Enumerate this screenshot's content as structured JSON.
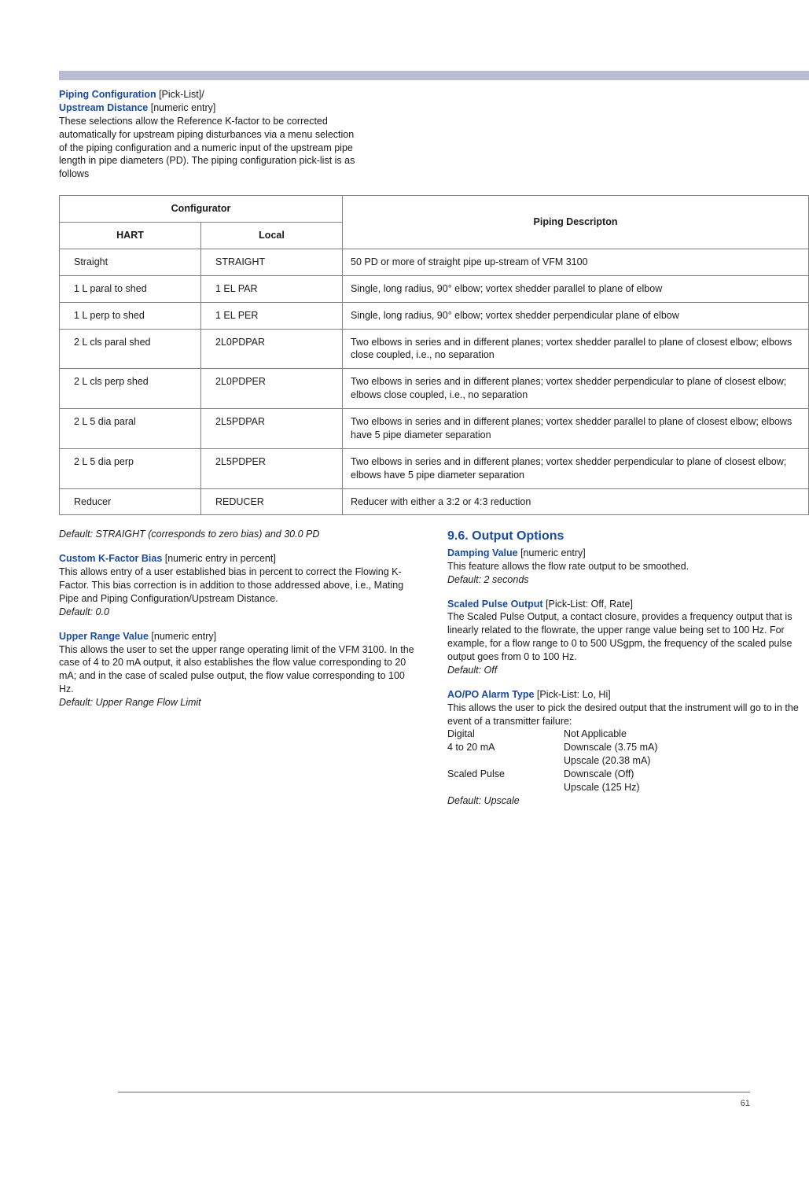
{
  "intro": {
    "heading1": "Piping Configuration",
    "heading1_suffix": " [Pick-List]/",
    "heading2": "Upstream Distance",
    "heading2_suffix": " [numeric entry]",
    "body": "These selections allow the Reference K-factor to be corrected automatically for upstream piping disturbances via a menu selection of the piping configuration and a numeric input of the upstream pipe length in pipe diameters (PD). The piping configuration pick-list is as follows"
  },
  "table": {
    "header_configurator": "Configurator",
    "header_piping": "Piping Descripton",
    "header_hart": "HART",
    "header_local": "Local",
    "rows": [
      {
        "hart": "Straight",
        "local": "STRAIGHT",
        "desc": "50 PD or more of straight pipe up-stream of VFM 3100"
      },
      {
        "hart": "1 L paral to shed",
        "local": "1 EL PAR",
        "desc": "Single, long radius, 90° elbow; vortex shedder parallel to plane of elbow"
      },
      {
        "hart": "1 L perp to shed",
        "local": "1 EL PER",
        "desc": "Single, long radius, 90° elbow; vortex shedder perpendicular plane of elbow"
      },
      {
        "hart": "2 L cls paral shed",
        "local": "2L0PDPAR",
        "desc": "Two elbows in series and in different planes; vortex shedder parallel to plane of closest elbow; elbows close coupled, i.e., no separation"
      },
      {
        "hart": "2 L cls perp shed",
        "local": "2L0PDPER",
        "desc": "Two elbows in series and in different planes; vortex shedder perpendicular to plane of closest elbow; elbows close coupled, i.e., no separation"
      },
      {
        "hart": "2 L 5 dia paral",
        "local": "2L5PDPAR",
        "desc": "Two elbows in series and in different planes; vortex shedder parallel to plane of closest elbow; elbows have 5 pipe diameter separation"
      },
      {
        "hart": "2 L 5 dia perp",
        "local": "2L5PDPER",
        "desc": "Two elbows in series and in different planes; vortex shedder perpendicular to plane of closest elbow; elbows have 5 pipe diameter separation"
      },
      {
        "hart": "Reducer",
        "local": "REDUCER",
        "desc": "Reducer with either a 3:2 or 4:3 reduction"
      }
    ]
  },
  "left_col": {
    "default1": "Default: STRAIGHT (corresponds to zero bias) and 30.0 PD",
    "custom_head": "Custom K-Factor Bias",
    "custom_suffix": " [numeric entry in percent]",
    "custom_body": "This allows entry of a user established bias in percent to correct the Flowing K-Factor. This bias correction is in addition to those addressed above, i.e., Mating Pipe and Piping Configuration/Upstream Distance.",
    "custom_default": "Default: 0.0",
    "upper_head": "Upper Range Value",
    "upper_suffix": " [numeric entry]",
    "upper_body": "This allows the user to set the upper range operating limit of the VFM 3100. In the case of 4 to 20 mA output, it also establishes the flow value corresponding to 20 mA; and in the case of scaled pulse output, the flow value corresponding to 100 Hz.",
    "upper_default": "Default: Upper Range Flow Limit"
  },
  "right_col": {
    "section_title": "9.6. Output Options",
    "damp_head": "Damping Value",
    "damp_suffix": " [numeric entry]",
    "damp_body": "This feature allows the flow rate output to be smoothed.",
    "damp_default": "Default: 2 seconds",
    "scaled_head": "Scaled Pulse Output",
    "scaled_suffix": " [Pick-List: Off, Rate]",
    "scaled_body": "The Scaled Pulse Output, a contact closure, provides a frequency output that is linearly related to the flowrate, the upper range value being set to 100 Hz. For example, for a flow range to 0 to 500 USgpm, the frequency of the scaled pulse output goes from 0 to 100 Hz.",
    "scaled_default": "Default: Off",
    "alarm_head": "AO/PO Alarm Type",
    "alarm_suffix": " [Pick-List: Lo, Hi]",
    "alarm_body": "This allows the user to pick the desired output that the instrument will go to in the event of a transmitter failure:",
    "alarm_rows": [
      {
        "k": "Digital",
        "v": "Not Applicable"
      },
      {
        "k": "4 to 20 mA",
        "v": "Downscale (3.75 mA)"
      },
      {
        "k": "",
        "v": "Upscale (20.38 mA)"
      },
      {
        "k": "Scaled Pulse",
        "v": "Downscale (Off)"
      },
      {
        "k": "",
        "v": "Upscale (125 Hz)"
      }
    ],
    "alarm_default": "Default: Upscale"
  },
  "page_number": "61",
  "colors": {
    "top_bar": "#b8bcd4",
    "blue_heading": "#1a4a9c",
    "table_border": "#808080",
    "body_text": "#1a1a1a"
  }
}
